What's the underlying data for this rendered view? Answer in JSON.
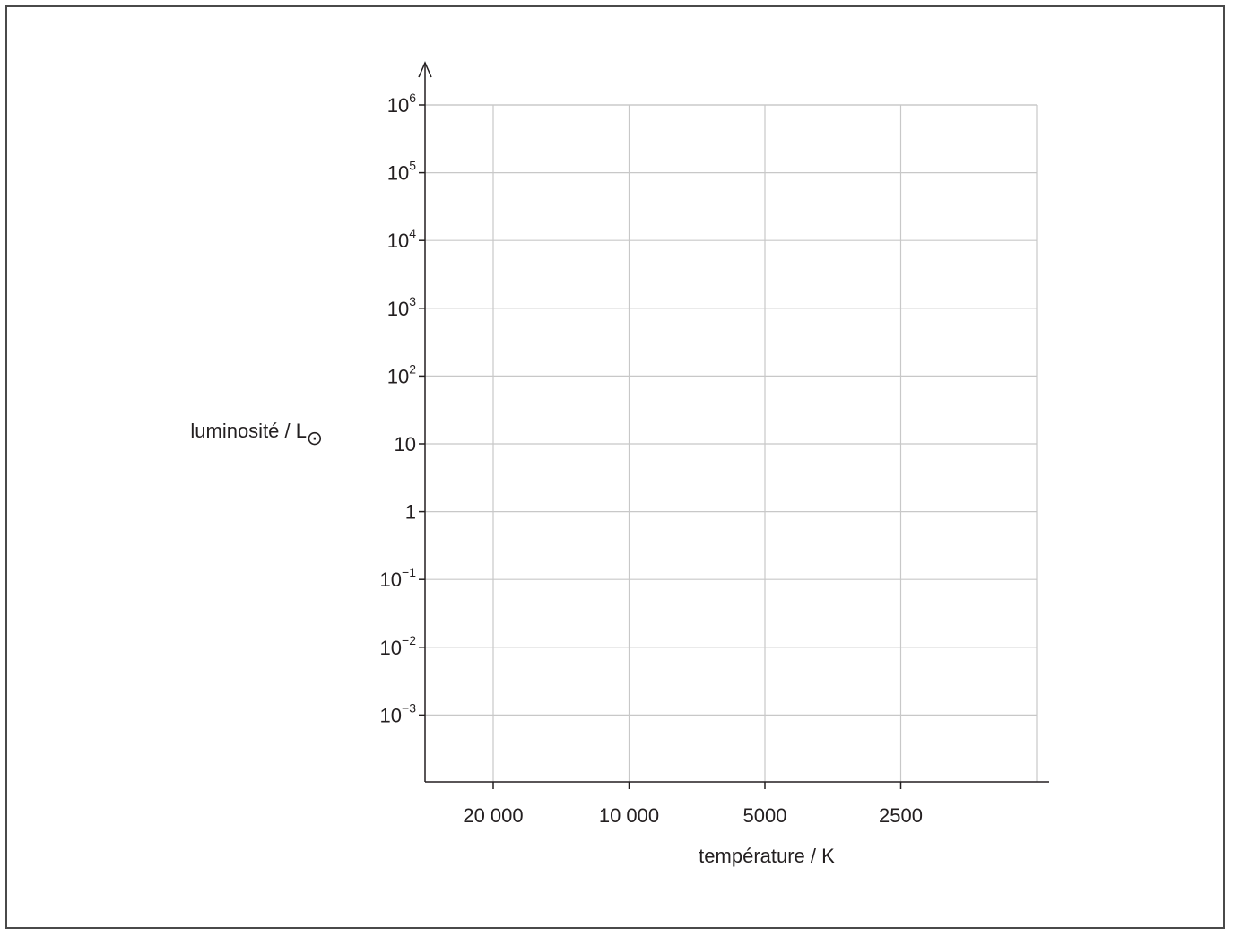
{
  "chart_data": {
    "type": "scatter",
    "title": "",
    "xlabel": "température / K",
    "ylabel": "luminosité / L",
    "ylabel_subscript": "⊙",
    "x_scale": "log-reversed",
    "y_scale": "log",
    "x_ticks": [
      {
        "value": 20000,
        "label": "20 000"
      },
      {
        "value": 10000,
        "label": "10 000"
      },
      {
        "value": 5000,
        "label": "5000"
      },
      {
        "value": 2500,
        "label": "2500"
      }
    ],
    "y_ticks": [
      {
        "value": 1000000,
        "base": "10",
        "exp": "6"
      },
      {
        "value": 100000,
        "base": "10",
        "exp": "5"
      },
      {
        "value": 10000,
        "base": "10",
        "exp": "4"
      },
      {
        "value": 1000,
        "base": "10",
        "exp": "3"
      },
      {
        "value": 100,
        "base": "10",
        "exp": "2"
      },
      {
        "value": 10,
        "base": "10",
        "exp": ""
      },
      {
        "value": 1,
        "base": "1",
        "exp": ""
      },
      {
        "value": 0.1,
        "base": "10",
        "exp": "−1"
      },
      {
        "value": 0.01,
        "base": "10",
        "exp": "−2"
      },
      {
        "value": 0.001,
        "base": "10",
        "exp": "−3"
      }
    ],
    "xlim": [
      40000,
      1250
    ],
    "ylim": [
      0.0001,
      1000000
    ],
    "grid": true,
    "series": []
  }
}
